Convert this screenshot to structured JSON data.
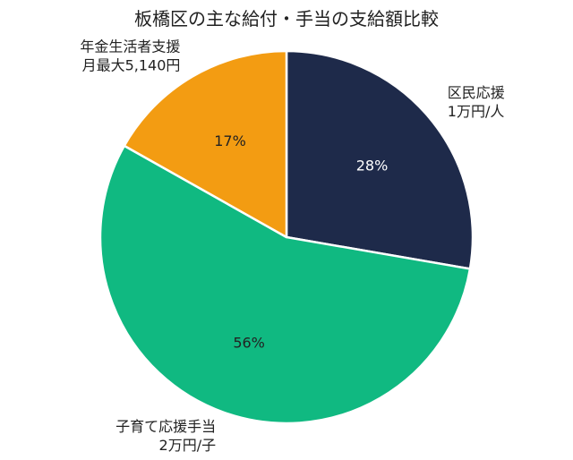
{
  "chart_data": {
    "type": "pie",
    "title": "板橋区の主な給付・手当の支給額比較",
    "slices": [
      {
        "label_lines": [
          "区民応援",
          "1万円/人"
        ],
        "percent": 28,
        "percent_text": "28%",
        "color": "#1e2a4a",
        "text_color": "#ffffff"
      },
      {
        "label_lines": [
          "子育て応援手当",
          "2万円/子"
        ],
        "percent": 56,
        "percent_text": "56%",
        "color": "#10b981",
        "text_color": "#222222"
      },
      {
        "label_lines": [
          "年金生活者支援",
          "月最大5,140円"
        ],
        "percent": 17,
        "percent_text": "17%",
        "color": "#f39c12",
        "text_color": "#222222"
      }
    ],
    "start_angle_deg": 0,
    "direction": "clockwise",
    "slice_border_color": "#ffffff",
    "label_color": "#222222"
  }
}
